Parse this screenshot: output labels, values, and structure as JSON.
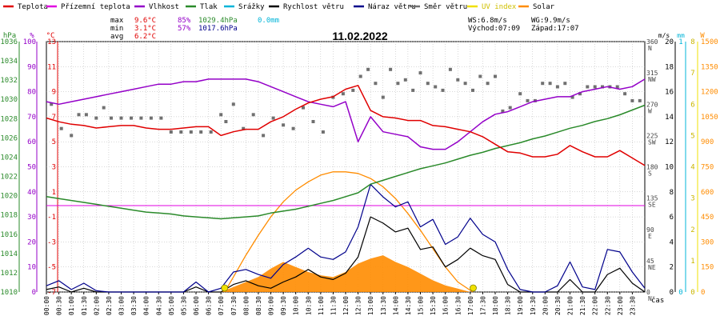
{
  "chart_data": {
    "type": "line",
    "title": "11.02.2022",
    "legend": [
      {
        "label": "Teplota",
        "color": "#e00000"
      },
      {
        "label": "Přízemní teplota",
        "color": "#e000e0"
      },
      {
        "label": "Vlhkost",
        "color": "#9400c8"
      },
      {
        "label": "Tlak",
        "color": "#2a8a2a"
      },
      {
        "label": "Srážky",
        "color": "#00b4d8"
      },
      {
        "label": "Rychlost větru",
        "color": "#000000"
      },
      {
        "label": "Náraz větru",
        "color": "#00008b"
      },
      {
        "label": "Směr větru",
        "color": "#707070"
      },
      {
        "label": "UV index",
        "color": "#f0e000"
      },
      {
        "label": "Solar",
        "color": "#ff8c00"
      }
    ],
    "stats": {
      "max_label": "max",
      "min_label": "min",
      "avg_label": "avg",
      "temp_max": "9.6°C",
      "temp_min": "3.1°C",
      "temp_avg": "6.2°C",
      "hum_max": "85%",
      "hum_min": "57%",
      "press_max": "1029.4hPa",
      "press_min": "1017.6hPa",
      "rain": "0.0mm",
      "ws": "WS:6.8m/s",
      "wg": "WG:9.9m/s",
      "sunrise": "Východ:07:09",
      "sunset": "Západ:17:07"
    },
    "axes": {
      "hpa": {
        "unit": "hPa",
        "ticks": [
          "1036",
          "1034",
          "1032",
          "1030",
          "1028",
          "1026",
          "1024",
          "1022",
          "1020",
          "1018",
          "1016",
          "1014",
          "1012",
          "1010"
        ],
        "range": [
          1010,
          1036
        ]
      },
      "humidity": {
        "unit": "%",
        "ticks": [
          "100",
          "90",
          "80",
          "70",
          "60",
          "50",
          "40",
          "30",
          "20",
          "10",
          "0"
        ],
        "range": [
          0,
          100
        ]
      },
      "temperature": {
        "unit": "°C",
        "ticks": [
          "13",
          "11",
          "9",
          "7",
          "5",
          "3",
          "1",
          "-1",
          "-3",
          "-5",
          "-7"
        ],
        "range": [
          -7,
          13
        ]
      },
      "direction": {
        "ticks": [
          "360",
          "315",
          "270",
          "225",
          "180",
          "135",
          "90",
          "45",
          "0"
        ],
        "letters": [
          "N",
          "NW",
          "W",
          "SW",
          "S",
          "SE",
          "E",
          "NE",
          "N"
        ],
        "range": [
          0,
          360
        ]
      },
      "wind": {
        "unit": "m/s",
        "ticks": [
          "20",
          "18",
          "16",
          "14",
          "12",
          "10",
          "8",
          "6",
          "4",
          "2",
          "0"
        ],
        "range": [
          0,
          20
        ]
      },
      "rain": {
        "unit": "mm",
        "ticks": [
          "1",
          "0"
        ],
        "range": [
          0,
          1
        ]
      },
      "uv": {
        "unit": "",
        "ticks": [
          "8",
          "7",
          "6",
          "5",
          "4",
          "3",
          "2",
          "1",
          "0"
        ],
        "range": [
          0,
          8
        ]
      },
      "solar": {
        "unit": "W",
        "ticks": [
          "1500",
          "1350",
          "1200",
          "1050",
          "900",
          "750",
          "600",
          "450",
          "300",
          "150",
          "0"
        ],
        "range": [
          0,
          1500
        ]
      },
      "x": {
        "label": "čas",
        "ticks": [
          "00:00",
          "00:30",
          "01:00",
          "01:30",
          "02:00",
          "02:30",
          "03:00",
          "03:30",
          "04:00",
          "04:30",
          "05:00",
          "05:30",
          "06:00",
          "06:30",
          "07:00",
          "07:30",
          "08:00",
          "08:30",
          "09:00",
          "09:30",
          "10:00",
          "10:30",
          "11:00",
          "11:30",
          "12:00",
          "12:30",
          "13:00",
          "13:30",
          "14:00",
          "14:30",
          "15:00",
          "15:30",
          "16:00",
          "16:30",
          "17:00",
          "17:30",
          "18:00",
          "18:30",
          "19:00",
          "19:30",
          "20:00",
          "20:30",
          "21:00",
          "21:30",
          "22:00",
          "22:30",
          "23:00",
          "23:30"
        ],
        "range": [
          0,
          24
        ]
      }
    },
    "series": [
      {
        "name": "Teplota",
        "axis": "temperature",
        "color": "#e00000",
        "x": [
          0,
          0.5,
          1,
          1.5,
          2,
          2.5,
          3,
          3.5,
          4,
          4.5,
          5,
          5.5,
          6,
          6.5,
          7,
          7.5,
          8,
          8.5,
          9,
          9.5,
          10,
          10.5,
          11,
          11.5,
          12,
          12.5,
          13,
          13.5,
          14,
          14.5,
          15,
          15.5,
          16,
          16.5,
          17,
          17.5,
          18,
          18.5,
          19,
          19.5,
          20,
          20.5,
          21,
          21.5,
          22,
          22.5,
          23,
          23.5,
          24
        ],
        "values": [
          6.9,
          6.6,
          6.4,
          6.3,
          6.1,
          6.2,
          6.3,
          6.3,
          6.1,
          6.0,
          6.0,
          6.1,
          6.2,
          6.2,
          5.5,
          5.8,
          6.0,
          6.0,
          6.6,
          7.0,
          7.6,
          8.1,
          8.4,
          8.6,
          9.2,
          9.5,
          7.5,
          7.0,
          6.9,
          6.7,
          6.7,
          6.3,
          6.2,
          6.0,
          5.8,
          5.4,
          4.8,
          4.2,
          4.1,
          3.8,
          3.8,
          4.0,
          4.7,
          4.2,
          3.8,
          3.8,
          4.3,
          3.7,
          3.1
        ]
      },
      {
        "name": "Vlhkost",
        "axis": "humidity",
        "color": "#9400c8",
        "x": [
          0,
          0.5,
          1,
          1.5,
          2,
          2.5,
          3,
          3.5,
          4,
          4.5,
          5,
          5.5,
          6,
          6.5,
          7,
          7.5,
          8,
          8.5,
          9,
          9.5,
          10,
          10.5,
          11,
          11.5,
          12,
          12.5,
          13,
          13.5,
          14,
          14.5,
          15,
          15.5,
          16,
          16.5,
          17,
          17.5,
          18,
          18.5,
          19,
          19.5,
          20,
          20.5,
          21,
          21.5,
          22,
          22.5,
          23,
          23.5,
          24
        ],
        "values": [
          76,
          75,
          76,
          77,
          78,
          79,
          80,
          81,
          82,
          83,
          83,
          84,
          84,
          85,
          85,
          85,
          85,
          84,
          82,
          80,
          78,
          76,
          75,
          74,
          76,
          60,
          70,
          64,
          63,
          62,
          58,
          57,
          57,
          60,
          64,
          68,
          71,
          72,
          74,
          76,
          77,
          78,
          78,
          80,
          81,
          82,
          81,
          82,
          85
        ]
      },
      {
        "name": "Tlak",
        "axis": "hpa",
        "color": "#2a8a2a",
        "x": [
          0,
          0.5,
          1,
          1.5,
          2,
          2.5,
          3,
          3.5,
          4,
          4.5,
          5,
          5.5,
          6,
          6.5,
          7,
          7.5,
          8,
          8.5,
          9,
          9.5,
          10,
          10.5,
          11,
          11.5,
          12,
          12.5,
          13,
          13.5,
          14,
          14.5,
          15,
          15.5,
          16,
          16.5,
          17,
          17.5,
          18,
          18.5,
          19,
          19.5,
          20,
          20.5,
          21,
          21.5,
          22,
          22.5,
          23,
          23.5,
          24
        ],
        "values": [
          1019.9,
          1019.7,
          1019.5,
          1019.3,
          1019.1,
          1018.9,
          1018.7,
          1018.5,
          1018.3,
          1018.2,
          1018.1,
          1017.9,
          1017.8,
          1017.7,
          1017.6,
          1017.7,
          1017.8,
          1017.9,
          1018.2,
          1018.4,
          1018.6,
          1018.9,
          1019.2,
          1019.5,
          1019.9,
          1020.3,
          1021.2,
          1021.6,
          1022.0,
          1022.4,
          1022.8,
          1023.1,
          1023.4,
          1023.8,
          1024.2,
          1024.5,
          1024.9,
          1025.2,
          1025.5,
          1025.9,
          1026.2,
          1026.6,
          1027.0,
          1027.3,
          1027.7,
          1028.0,
          1028.4,
          1028.9,
          1029.4
        ]
      },
      {
        "name": "Přízemní teplota",
        "axis": "temperature",
        "color": "#e000e0",
        "x": [
          0,
          24
        ],
        "values": [
          -0.1,
          -0.1
        ]
      },
      {
        "name": "Rychlost větru",
        "axis": "wind",
        "color": "#000000",
        "x": [
          0,
          0.5,
          1,
          1.5,
          2,
          2.5,
          3,
          3.5,
          4,
          4.5,
          5,
          5.5,
          6,
          6.5,
          7,
          7.5,
          8,
          8.5,
          9,
          9.5,
          10,
          10.5,
          11,
          11.5,
          12,
          12.5,
          13,
          13.5,
          14,
          14.5,
          15,
          15.5,
          16,
          16.5,
          17,
          17.5,
          18,
          18.5,
          19,
          19.5,
          20,
          20.5,
          21,
          21.5,
          22,
          22.5,
          23,
          23.5,
          24
        ],
        "values": [
          0.2,
          0.4,
          0,
          0.3,
          0,
          0,
          0,
          0,
          0,
          0,
          0,
          0,
          0.4,
          0,
          0,
          0.6,
          0.9,
          0.5,
          0.3,
          0.8,
          1.2,
          1.8,
          1.2,
          1.0,
          1.5,
          2.8,
          6.0,
          5.5,
          4.8,
          5.1,
          3.4,
          3.6,
          2.0,
          2.6,
          3.5,
          2.9,
          2.6,
          0.6,
          0,
          0,
          0,
          0,
          1.0,
          0,
          0,
          1.4,
          1.9,
          0.7,
          0
        ]
      },
      {
        "name": "Náraz větru",
        "axis": "wind",
        "color": "#00008b",
        "x": [
          0,
          0.5,
          1,
          1.5,
          2,
          2.5,
          3,
          3.5,
          4,
          4.5,
          5,
          5.5,
          6,
          6.5,
          7,
          7.5,
          8,
          8.5,
          9,
          9.5,
          10,
          10.5,
          11,
          11.5,
          12,
          12.5,
          13,
          13.5,
          14,
          14.5,
          15,
          15.5,
          16,
          16.5,
          17,
          17.5,
          18,
          18.5,
          19,
          19.5,
          20,
          20.5,
          21,
          21.5,
          22,
          22.5,
          23,
          23.5,
          24
        ],
        "values": [
          0.5,
          0.9,
          0.2,
          0.7,
          0.1,
          0,
          0,
          0,
          0,
          0,
          0,
          0,
          0.8,
          0,
          0.3,
          1.6,
          1.8,
          1.4,
          1.1,
          2.2,
          2.8,
          3.5,
          2.8,
          2.6,
          3.2,
          5.2,
          8.6,
          7.6,
          6.8,
          7.2,
          5.2,
          5.8,
          3.8,
          4.4,
          5.9,
          4.6,
          4.0,
          1.8,
          0.2,
          0,
          0,
          0.5,
          2.4,
          0.4,
          0.2,
          3.4,
          3.2,
          1.6,
          0.3
        ]
      },
      {
        "name": "Směr větru",
        "axis": "direction",
        "color": "#707070",
        "style": "scatter",
        "x": [
          0.2,
          0.6,
          1.0,
          1.3,
          1.6,
          2.0,
          2.3,
          2.6,
          3.0,
          3.4,
          3.8,
          4.2,
          4.6,
          5.0,
          5.4,
          5.8,
          6.2,
          6.6,
          7.0,
          7.2,
          7.5,
          7.9,
          8.3,
          8.7,
          9.1,
          9.5,
          9.9,
          10.3,
          10.7,
          11.1,
          11.5,
          11.9,
          12.3,
          12.6,
          12.9,
          13.2,
          13.5,
          13.8,
          14.1,
          14.4,
          14.7,
          15.0,
          15.3,
          15.6,
          15.9,
          16.2,
          16.5,
          16.8,
          17.1,
          17.4,
          17.7,
          18.0,
          18.3,
          18.6,
          19.0,
          19.3,
          19.6,
          19.9,
          20.2,
          20.5,
          20.8,
          21.1,
          21.4,
          21.7,
          22.0,
          22.3,
          22.6,
          22.9,
          23.2,
          23.5,
          23.8
        ],
        "values": [
          270,
          235,
          225,
          255,
          255,
          250,
          265,
          250,
          250,
          250,
          250,
          250,
          250,
          230,
          230,
          230,
          230,
          230,
          255,
          245,
          270,
          235,
          255,
          225,
          250,
          240,
          235,
          265,
          245,
          230,
          280,
          285,
          290,
          310,
          320,
          300,
          280,
          320,
          300,
          305,
          290,
          315,
          300,
          295,
          290,
          320,
          305,
          300,
          290,
          310,
          300,
          310,
          260,
          265,
          285,
          275,
          275,
          300,
          300,
          295,
          300,
          280,
          285,
          295,
          295,
          295,
          295,
          295,
          285,
          275,
          275
        ]
      },
      {
        "name": "Solar",
        "axis": "solar",
        "color": "#ff8c00",
        "style": "area",
        "x": [
          7.0,
          7.5,
          8.0,
          8.5,
          9.0,
          9.5,
          10.0,
          10.5,
          11.0,
          11.5,
          12.0,
          12.5,
          13.0,
          13.5,
          14.0,
          14.5,
          15.0,
          15.5,
          16.0,
          16.5,
          17.0
        ],
        "values": [
          0,
          30,
          60,
          90,
          140,
          180,
          150,
          120,
          100,
          90,
          120,
          170,
          200,
          220,
          180,
          150,
          110,
          70,
          40,
          20,
          0
        ]
      },
      {
        "name": "Solar theoretical",
        "axis": "solar",
        "color": "#ff8c00",
        "x": [
          7.15,
          7.5,
          8,
          8.5,
          9,
          9.5,
          10,
          10.5,
          11,
          11.5,
          12,
          12.5,
          13,
          13.5,
          14,
          14.5,
          15,
          15.5,
          16,
          16.5,
          17.1
        ],
        "values": [
          0,
          90,
          220,
          340,
          450,
          540,
          610,
          660,
          700,
          720,
          720,
          710,
          680,
          630,
          560,
          470,
          370,
          260,
          150,
          60,
          0
        ]
      }
    ],
    "sun_markers": [
      "07:09",
      "17:07"
    ]
  }
}
